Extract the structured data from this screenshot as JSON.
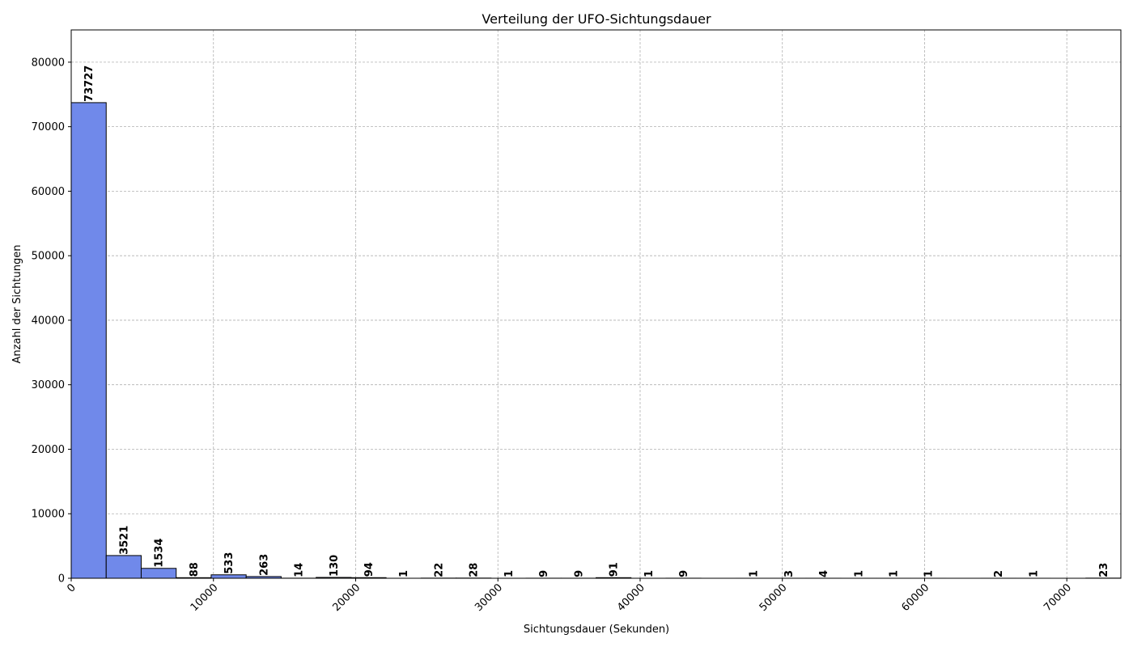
{
  "chart_data": {
    "type": "bar",
    "title": "Verteilung der UFO-Sichtungsdauer",
    "xlabel": "Sichtungsdauer (Sekunden)",
    "ylabel": "Anzahl der Sichtungen",
    "xlim": [
      0,
      73800
    ],
    "ylim": [
      0,
      85000
    ],
    "xticks": [
      0,
      10000,
      20000,
      30000,
      40000,
      50000,
      60000,
      70000
    ],
    "yticks": [
      0,
      10000,
      20000,
      30000,
      40000,
      50000,
      60000,
      70000,
      80000
    ],
    "grid": true,
    "bin_width": 2460,
    "bins": [
      {
        "start": 0,
        "value": 73727,
        "label": "73727"
      },
      {
        "start": 2460,
        "value": 3521,
        "label": "3521"
      },
      {
        "start": 4920,
        "value": 1534,
        "label": "1534"
      },
      {
        "start": 7380,
        "value": 88,
        "label": "88"
      },
      {
        "start": 9840,
        "value": 533,
        "label": "533"
      },
      {
        "start": 12300,
        "value": 263,
        "label": "263"
      },
      {
        "start": 14760,
        "value": 14,
        "label": "14"
      },
      {
        "start": 17220,
        "value": 130,
        "label": "130"
      },
      {
        "start": 19680,
        "value": 94,
        "label": "94"
      },
      {
        "start": 22140,
        "value": 1,
        "label": "1"
      },
      {
        "start": 24600,
        "value": 22,
        "label": "22"
      },
      {
        "start": 27060,
        "value": 28,
        "label": "28"
      },
      {
        "start": 29520,
        "value": 1,
        "label": "1"
      },
      {
        "start": 31980,
        "value": 9,
        "label": "9"
      },
      {
        "start": 34440,
        "value": 9,
        "label": "9"
      },
      {
        "start": 36900,
        "value": 91,
        "label": "91"
      },
      {
        "start": 39360,
        "value": 1,
        "label": "1"
      },
      {
        "start": 41820,
        "value": 9,
        "label": "9"
      },
      {
        "start": 46740,
        "value": 1,
        "label": "1"
      },
      {
        "start": 49200,
        "value": 3,
        "label": "3"
      },
      {
        "start": 51660,
        "value": 4,
        "label": "4"
      },
      {
        "start": 54120,
        "value": 1,
        "label": "1"
      },
      {
        "start": 56580,
        "value": 1,
        "label": "1"
      },
      {
        "start": 59040,
        "value": 1,
        "label": "1"
      },
      {
        "start": 63960,
        "value": 2,
        "label": "2"
      },
      {
        "start": 66420,
        "value": 1,
        "label": "1"
      },
      {
        "start": 71340,
        "value": 23,
        "label": "23"
      }
    ],
    "colors": {
      "bar": "#7089ea",
      "edge": "#000000",
      "grid": "#b0b0b0"
    }
  }
}
